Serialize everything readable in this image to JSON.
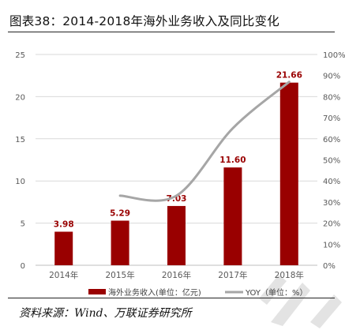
{
  "title": "图表38：2014-2018年海外业务收入及同比变化",
  "source": "资料来源：Wind、万联证券研究所",
  "chart_data": {
    "type": "bar",
    "categories": [
      "2014年",
      "2015年",
      "2016年",
      "2017年",
      "2018年"
    ],
    "series": [
      {
        "name": "海外业务收入(单位：亿元)",
        "type": "bar",
        "axis": "left",
        "color": "#990000",
        "values": [
          3.98,
          5.29,
          7.03,
          11.6,
          21.66
        ],
        "data_labels": [
          "3.98",
          "5.29",
          "7.03",
          "11.60",
          "21.66"
        ]
      },
      {
        "name": "YOY（单位：%）",
        "type": "line",
        "axis": "right",
        "color": "#a6a6a6",
        "values": [
          null,
          33,
          33,
          65,
          87
        ]
      }
    ],
    "y_left": {
      "min": 0,
      "max": 25,
      "ticks": [
        "0",
        "5",
        "10",
        "15",
        "20",
        "25"
      ]
    },
    "y_right": {
      "min": 0,
      "max": 100,
      "ticks": [
        "0%",
        "10%",
        "20%",
        "30%",
        "40%",
        "50%",
        "60%",
        "70%",
        "80%",
        "90%",
        "100%"
      ]
    },
    "grid": true,
    "legend_position": "bottom"
  }
}
